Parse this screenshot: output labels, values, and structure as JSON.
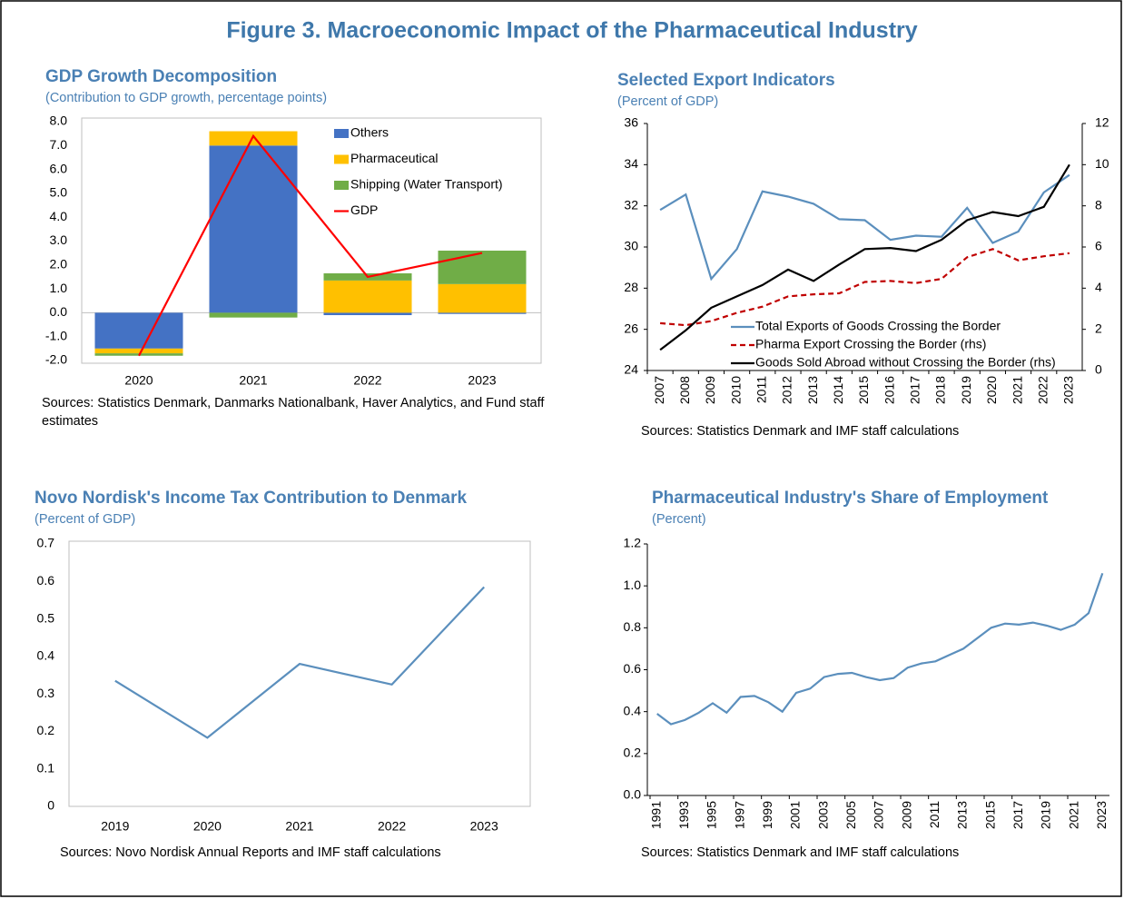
{
  "title": "Figure 3. Macroeconomic Impact of the Pharmaceutical Industry",
  "chart_data": [
    {
      "type": "bar",
      "stacked": true,
      "title": "GDP Growth Decomposition",
      "subtitle": "(Contribution to GDP growth, percentage points)",
      "source": "Sources: Statistics Denmark, Danmarks Nationalbank, Haver Analytics, and Fund staff estimates",
      "categories": [
        "2020",
        "2021",
        "2022",
        "2023"
      ],
      "series": [
        {
          "name": "Others",
          "color": "#4472c4",
          "values": [
            -1.5,
            7.0,
            -0.1,
            -0.05
          ]
        },
        {
          "name": "Pharmaceutical",
          "color": "#ffc000",
          "values": [
            -0.2,
            0.6,
            1.35,
            1.2
          ]
        },
        {
          "name": "Shipping (Water Transport)",
          "color": "#70ad47",
          "values": [
            -0.1,
            -0.2,
            0.3,
            1.4
          ]
        },
        {
          "name": "GDP",
          "type": "line",
          "color": "#ff0000",
          "values": [
            -1.8,
            7.4,
            1.5,
            2.5
          ]
        }
      ],
      "ylim": [
        -2,
        8
      ],
      "yticks": [
        {
          "value": -2,
          "label": "-2.0"
        },
        {
          "value": -1,
          "label": "-1.0"
        },
        {
          "value": 0,
          "label": "0.0"
        },
        {
          "value": 1,
          "label": "1.0"
        },
        {
          "value": 2,
          "label": "2.0"
        },
        {
          "value": 3,
          "label": "3.0"
        },
        {
          "value": 4,
          "label": "4.0"
        },
        {
          "value": 5,
          "label": "5.0"
        },
        {
          "value": 6,
          "label": "6.0"
        },
        {
          "value": 7,
          "label": "7.0"
        },
        {
          "value": 8,
          "label": "8.0"
        }
      ],
      "legend": "top-right"
    },
    {
      "type": "line",
      "title": "Selected Export Indicators",
      "subtitle": "(Percent of GDP)",
      "source": "Sources: Statistics Denmark and IMF staff calculations",
      "categories": [
        "2007",
        "2008",
        "2009",
        "2010",
        "2011",
        "2012",
        "2013",
        "2014",
        "2015",
        "2016",
        "2017",
        "2018",
        "2019",
        "2020",
        "2021",
        "2022",
        "2023"
      ],
      "series": [
        {
          "name": "Total Exports of Goods Crossing the Border",
          "color": "#5b8fbd",
          "values": [
            31.8,
            32.55,
            28.45,
            29.9,
            32.7,
            32.45,
            32.1,
            31.35,
            31.3,
            30.35,
            30.55,
            30.5,
            31.9,
            30.2,
            30.75,
            32.65,
            33.5
          ]
        },
        {
          "name": "Pharma Export Crossing the Border (rhs)",
          "color": "#c00000",
          "dash": true,
          "axis": "y2",
          "values": [
            2.3,
            2.2,
            2.4,
            2.8,
            3.1,
            3.6,
            3.7,
            3.75,
            4.3,
            4.35,
            4.25,
            4.45,
            5.5,
            5.9,
            5.35,
            5.55,
            5.7
          ]
        },
        {
          "name": "Goods Sold Abroad without Crossing the Border (rhs)",
          "color": "#000000",
          "axis": "y2",
          "values": [
            1.0,
            1.95,
            3.05,
            3.6,
            4.15,
            4.9,
            4.35,
            5.15,
            5.9,
            5.95,
            5.8,
            6.35,
            7.3,
            7.7,
            7.5,
            7.95,
            10.0
          ]
        }
      ],
      "ylim": [
        24,
        36
      ],
      "yticks": [
        24,
        26,
        28,
        30,
        32,
        34,
        36
      ],
      "y2lim": [
        0,
        12
      ],
      "y2ticks": [
        0,
        2,
        4,
        6,
        8,
        10,
        12
      ],
      "legend": "bottom-left"
    },
    {
      "type": "line",
      "title": "Novo Nordisk's Income Tax Contribution to Denmark",
      "subtitle": "(Percent of GDP)",
      "source": "Sources: Novo Nordisk Annual Reports and IMF staff calculations",
      "categories": [
        "2019",
        "2020",
        "2021",
        "2022",
        "2023"
      ],
      "series": [
        {
          "color": "#5b8fbd",
          "values": [
            0.335,
            0.183,
            0.38,
            0.325,
            0.585
          ]
        }
      ],
      "ylim": [
        0,
        0.7
      ],
      "yticks": [
        0,
        0.1,
        0.2,
        0.3,
        0.4,
        0.5,
        0.6,
        0.7
      ]
    },
    {
      "type": "line",
      "title": "Pharmaceutical Industry's Share of Employment",
      "subtitle": "(Percent)",
      "source": "Sources: Statistics Denmark and IMF staff calculations",
      "categories": [
        "1991",
        null,
        "1993",
        null,
        "1995",
        null,
        "1997",
        null,
        "1999",
        null,
        "2001",
        null,
        "2003",
        null,
        "2005",
        null,
        "2007",
        null,
        "2009",
        null,
        "2011",
        null,
        "2013",
        null,
        "2015",
        null,
        "2017",
        null,
        "2019",
        null,
        "2021",
        null,
        "2023"
      ],
      "series": [
        {
          "color": "#5b8fbd",
          "values": [
            0.39,
            0.34,
            0.36,
            0.395,
            0.44,
            0.395,
            0.47,
            0.475,
            0.445,
            0.4,
            0.49,
            0.51,
            0.565,
            0.58,
            0.585,
            0.565,
            0.55,
            0.56,
            0.61,
            0.63,
            0.64,
            0.67,
            0.7,
            0.75,
            0.8,
            0.82,
            0.815,
            0.825,
            0.81,
            0.79,
            0.815,
            0.87,
            1.06
          ]
        }
      ],
      "ylim": [
        0,
        1.2
      ],
      "yticks": [
        {
          "value": 0,
          "label": "0.0"
        },
        {
          "value": 0.2,
          "label": "0.2"
        },
        {
          "value": 0.4,
          "label": "0.4"
        },
        {
          "value": 0.6,
          "label": "0.6"
        },
        {
          "value": 0.8,
          "label": "0.8"
        },
        {
          "value": 1,
          "label": "1.0"
        },
        {
          "value": 1.2,
          "label": "1.2"
        }
      ]
    }
  ]
}
